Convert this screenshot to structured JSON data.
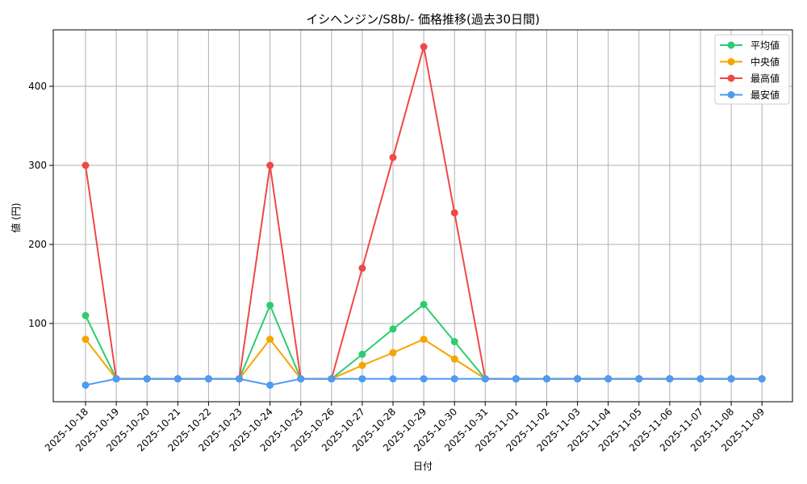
{
  "chart_data": {
    "type": "line",
    "title": "イシヘンジン/S8b/- 価格推移(過去30日間)",
    "xlabel": "日付",
    "ylabel": "値 (円)",
    "ylim": [
      0,
      470
    ],
    "yticks": [
      100,
      200,
      300,
      400
    ],
    "grid": true,
    "legend_position": "upper right",
    "categories": [
      "2025-10-18",
      "2025-10-19",
      "2025-10-20",
      "2025-10-21",
      "2025-10-22",
      "2025-10-23",
      "2025-10-24",
      "2025-10-25",
      "2025-10-26",
      "2025-10-27",
      "2025-10-28",
      "2025-10-29",
      "2025-10-30",
      "2025-10-31",
      "2025-11-01",
      "2025-11-02",
      "2025-11-03",
      "2025-11-04",
      "2025-11-05",
      "2025-11-06",
      "2025-11-07",
      "2025-11-08",
      "2025-11-09"
    ],
    "series": [
      {
        "name": "平均値",
        "color": "#2ecc71",
        "values": [
          110,
          30,
          30,
          30,
          30,
          30,
          123,
          30,
          30,
          61,
          93,
          124,
          77,
          30,
          30,
          30,
          30,
          30,
          30,
          30,
          30,
          30,
          30
        ]
      },
      {
        "name": "中央値",
        "color": "#f5a500",
        "values": [
          80,
          30,
          30,
          30,
          30,
          30,
          80,
          30,
          30,
          47,
          63,
          80,
          55,
          30,
          30,
          30,
          30,
          30,
          30,
          30,
          30,
          30,
          30
        ]
      },
      {
        "name": "最高値",
        "color": "#f04848",
        "values": [
          300,
          30,
          30,
          30,
          30,
          30,
          300,
          30,
          30,
          170,
          310,
          450,
          240,
          30,
          30,
          30,
          30,
          30,
          30,
          30,
          30,
          30,
          30
        ]
      },
      {
        "name": "最安値",
        "color": "#4c9bf5",
        "values": [
          22,
          30,
          30,
          30,
          30,
          30,
          22,
          30,
          30,
          30,
          30,
          30,
          30,
          30,
          30,
          30,
          30,
          30,
          30,
          30,
          30,
          30,
          30
        ]
      }
    ]
  }
}
